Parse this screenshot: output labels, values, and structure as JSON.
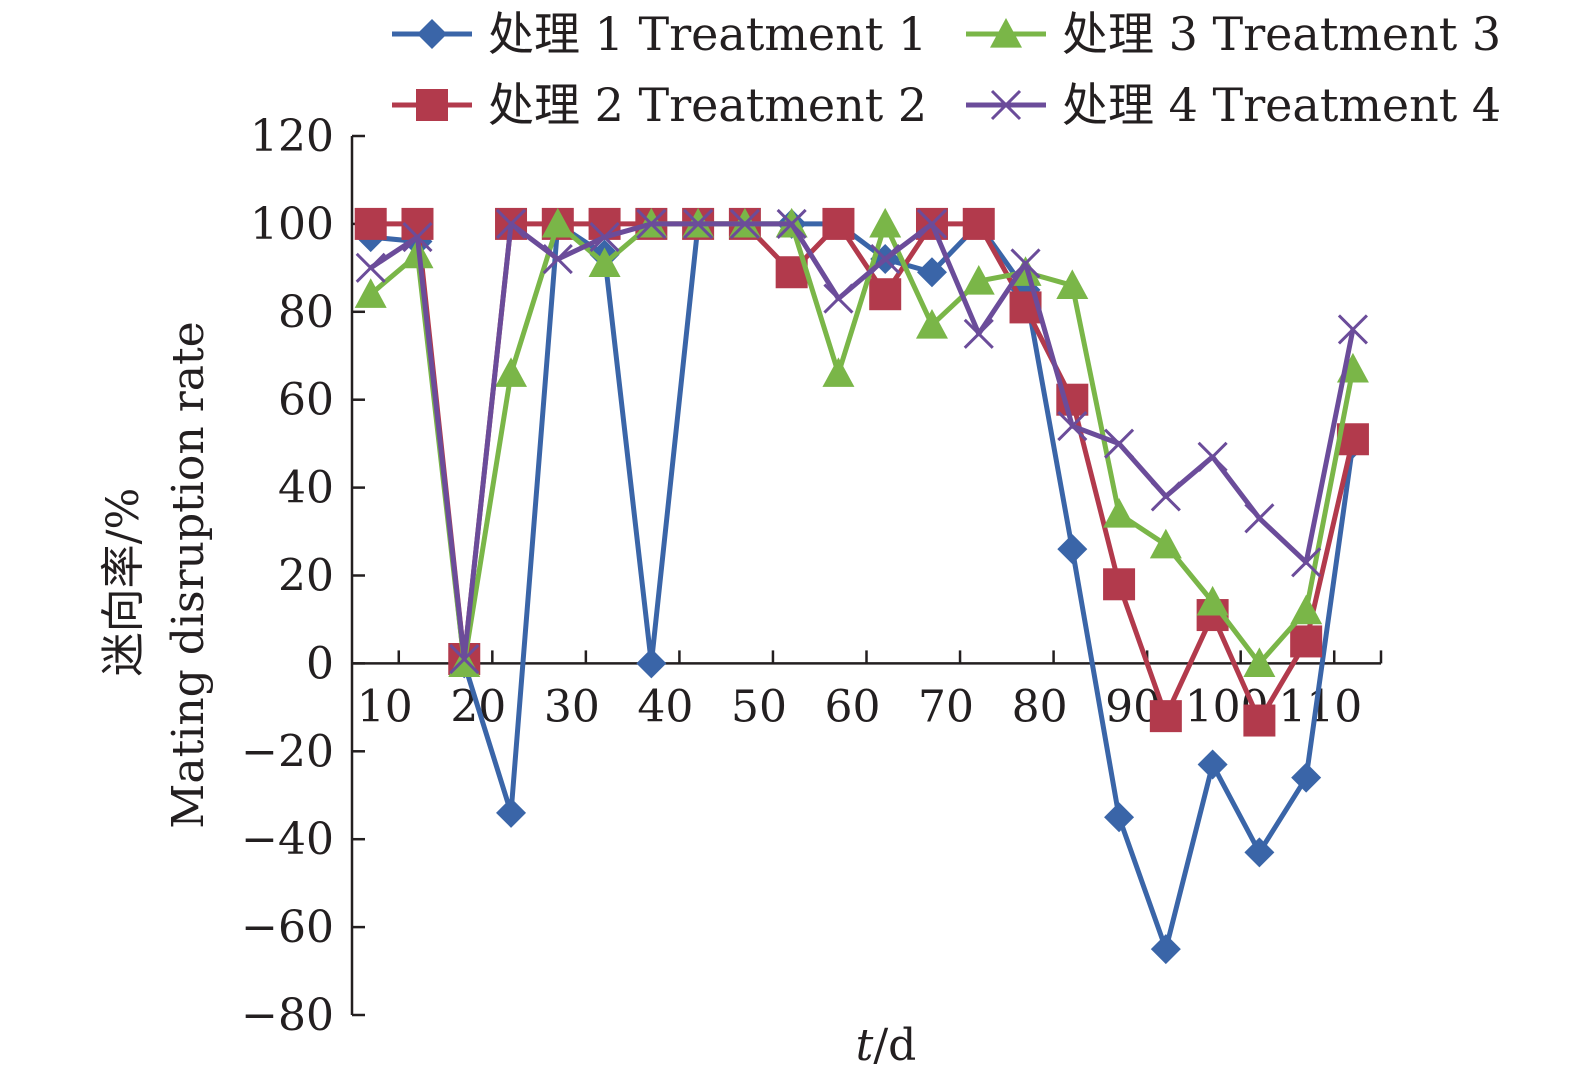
{
  "chart_data": {
    "type": "line",
    "xlabel_var": "t",
    "xlabel_unit": "/d",
    "ylabel_line1": "迷向率/%",
    "ylabel_line2": "Mating disruption rate",
    "ylim": [
      -80,
      120
    ],
    "xlim": [
      5,
      115
    ],
    "yticks": [
      -80,
      -60,
      -40,
      -20,
      0,
      20,
      40,
      60,
      80,
      100,
      120
    ],
    "xticks": [
      10,
      20,
      30,
      40,
      50,
      60,
      70,
      80,
      90,
      100,
      110
    ],
    "grid": false,
    "legend_position": "top",
    "x": [
      7,
      12,
      17,
      22,
      27,
      32,
      37,
      42,
      47,
      52,
      57,
      62,
      67,
      72,
      77,
      82,
      87,
      92,
      97,
      102,
      107,
      112
    ],
    "series": [
      {
        "name": "处理 1 Treatment 1",
        "marker": "diamond",
        "color": "#3a65a8",
        "values": [
          97,
          96,
          0,
          -34,
          100,
          93,
          0,
          100,
          100,
          100,
          100,
          92,
          89,
          100,
          85,
          26,
          -35,
          -65,
          -23,
          -43,
          -26,
          50
        ]
      },
      {
        "name": "处理 2 Treatment 2",
        "marker": "square",
        "color": "#b23a4c",
        "values": [
          100,
          100,
          1,
          100,
          100,
          100,
          100,
          100,
          100,
          89,
          100,
          84,
          100,
          100,
          81,
          60,
          18,
          -12,
          11,
          -13,
          5,
          51
        ]
      },
      {
        "name": "处理 3 Treatment 3",
        "marker": "triangle",
        "color": "#7ab648",
        "values": [
          84,
          93,
          0,
          66,
          100,
          91,
          100,
          100,
          100,
          100,
          66,
          100,
          77,
          87,
          89,
          86,
          34,
          27,
          14,
          0,
          12,
          67
        ]
      },
      {
        "name": "处理 4 Treatment 4",
        "marker": "x",
        "color": "#6b4c9a",
        "values": [
          90,
          97,
          1,
          100,
          92,
          97,
          100,
          100,
          100,
          100,
          83,
          92,
          100,
          75,
          91,
          54,
          50,
          38,
          47,
          33,
          23,
          76
        ]
      }
    ]
  }
}
